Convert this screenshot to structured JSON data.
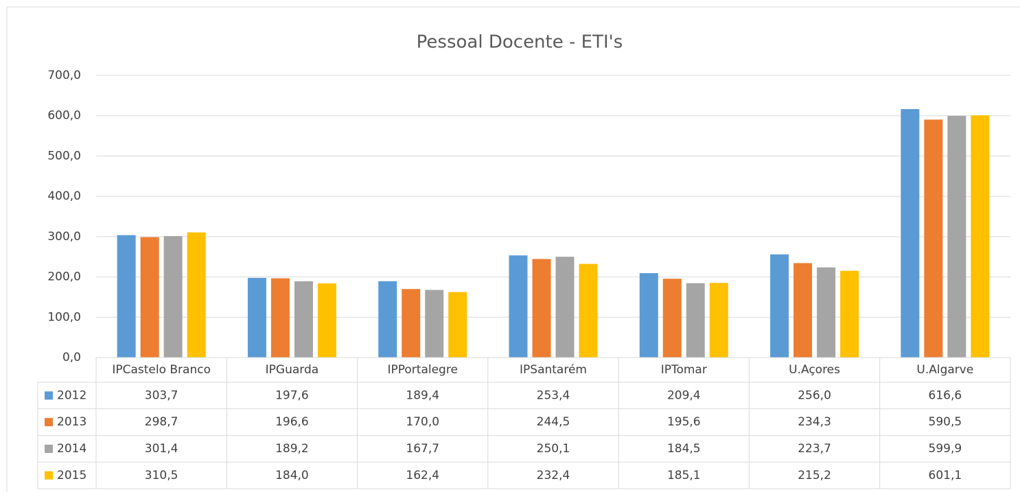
{
  "chart_data": {
    "type": "bar",
    "title": "Pessoal Docente - ETI's",
    "categories": [
      "IPCastelo Branco",
      "IPGuarda",
      "IPPortalegre",
      "IPSantarém",
      "IPTomar",
      "U.Açores",
      "U.Algarve"
    ],
    "series": [
      {
        "name": "2012",
        "color": "#5b9bd5",
        "values": [
          303.7,
          197.6,
          189.4,
          253.4,
          209.4,
          256.0,
          616.6
        ],
        "value_labels": [
          "303,7",
          "197,6",
          "189,4",
          "253,4",
          "209,4",
          "256,0",
          "616,6"
        ]
      },
      {
        "name": "2013",
        "color": "#ed7d31",
        "values": [
          298.7,
          196.6,
          170.0,
          244.5,
          195.6,
          234.3,
          590.5
        ],
        "value_labels": [
          "298,7",
          "196,6",
          "170,0",
          "244,5",
          "195,6",
          "234,3",
          "590,5"
        ]
      },
      {
        "name": "2014",
        "color": "#a5a5a5",
        "values": [
          301.4,
          189.2,
          167.7,
          250.1,
          184.5,
          223.7,
          599.9
        ],
        "value_labels": [
          "301,4",
          "189,2",
          "167,7",
          "250,1",
          "184,5",
          "223,7",
          "599,9"
        ]
      },
      {
        "name": "2015",
        "color": "#ffc000",
        "values": [
          310.5,
          184.0,
          162.4,
          232.4,
          185.1,
          215.2,
          601.1
        ],
        "value_labels": [
          "310,5",
          "184,0",
          "162,4",
          "232,4",
          "185,1",
          "215,2",
          "601,1"
        ]
      }
    ],
    "ylim": [
      0,
      700
    ],
    "yticks": [
      {
        "value": 0,
        "label": "0,0"
      },
      {
        "value": 100,
        "label": "100,0"
      },
      {
        "value": 200,
        "label": "200,0"
      },
      {
        "value": 300,
        "label": "300,0"
      },
      {
        "value": 400,
        "label": "400,0"
      },
      {
        "value": 500,
        "label": "500,0"
      },
      {
        "value": 600,
        "label": "600,0"
      },
      {
        "value": 700,
        "label": "700,0"
      }
    ],
    "grid": true
  }
}
